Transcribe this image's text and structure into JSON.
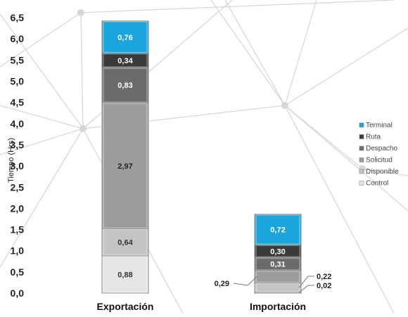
{
  "chart_data": {
    "type": "bar",
    "stacked": true,
    "categories": [
      "Exportación",
      "Importación"
    ],
    "ylabel": "Tiempo (Hrs)",
    "ylim": [
      0,
      6.5
    ],
    "yticks": [
      "0,0",
      "0,5",
      "1,0",
      "1,5",
      "2,0",
      "2,5",
      "3,0",
      "3,5",
      "4,0",
      "4,5",
      "5,0",
      "5,5",
      "6,0",
      "6,5"
    ],
    "legend_position": "right",
    "grid": false,
    "series": [
      {
        "name": "Control",
        "color": "#e6e6e6",
        "label_color": "#333333",
        "values": [
          0.88,
          0.02
        ],
        "labels": [
          "0,88",
          "0,02"
        ]
      },
      {
        "name": "Disponible",
        "color": "#c4c4c4",
        "label_color": "#333333",
        "values": [
          0.64,
          0.22
        ],
        "labels": [
          "0,64",
          "0,22"
        ]
      },
      {
        "name": "Solicitud",
        "color": "#9c9c9c",
        "label_color": "#222222",
        "values": [
          2.97,
          0.29
        ],
        "labels": [
          "2,97",
          "0,29"
        ]
      },
      {
        "name": "Despacho",
        "color": "#6b6b6b",
        "label_color": "#ffffff",
        "values": [
          0.83,
          0.31
        ],
        "labels": [
          "0,83",
          "0,31"
        ]
      },
      {
        "name": "Ruta",
        "color": "#3a3a3a",
        "label_color": "#ffffff",
        "values": [
          0.34,
          0.3
        ],
        "labels": [
          "0,34",
          "0,30"
        ]
      },
      {
        "name": "Terminal",
        "color": "#1aa6dc",
        "label_color": "#ffffff",
        "values": [
          0.76,
          0.72
        ],
        "labels": [
          "0,76",
          "0,72"
        ]
      }
    ]
  }
}
